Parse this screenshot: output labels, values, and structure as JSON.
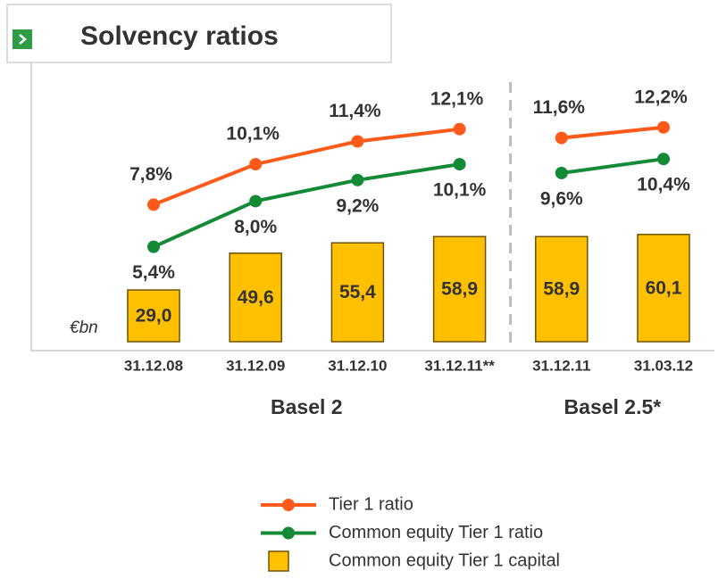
{
  "chart_data": {
    "type": "bar-line",
    "title": "Solvency ratios",
    "unit_label": "€bn",
    "categories": [
      "31.12.08",
      "31.12.09",
      "31.12.10",
      "31.12.11**",
      "31.12.11",
      "31.03.12"
    ],
    "groups": [
      {
        "label": "Basel 2",
        "span": 4
      },
      {
        "label": "Basel 2.5*",
        "span": 2
      }
    ],
    "ylim": [
      0,
      128
    ],
    "y2lim": [
      0,
      13
    ],
    "series": [
      {
        "name": "Tier 1 ratio",
        "type": "line",
        "axis": "y2",
        "color": "#ff5a1a",
        "values": [
          7.8,
          10.1,
          11.4,
          12.1,
          11.6,
          12.2
        ],
        "value_labels": [
          "7,8%",
          "10,1%",
          "11,4%",
          "12,1%",
          "11,6%",
          "12,2%"
        ]
      },
      {
        "name": "Common equity Tier 1 ratio",
        "type": "line",
        "axis": "y2",
        "color": "#138a36",
        "values": [
          5.4,
          8.0,
          9.2,
          10.1,
          9.6,
          10.4
        ],
        "value_labels": [
          "5,4%",
          "8,0%",
          "9,2%",
          "10,1%",
          "9,6%",
          "10,4%"
        ]
      },
      {
        "name": "Common equity Tier 1 capital",
        "type": "bar",
        "axis": "y",
        "color": "#ffc000",
        "values": [
          29.0,
          49.6,
          55.4,
          58.9,
          58.9,
          60.1
        ],
        "value_labels": [
          "29,0",
          "49,6",
          "55,4",
          "58,9",
          "58,9",
          "60,1"
        ]
      }
    ]
  }
}
